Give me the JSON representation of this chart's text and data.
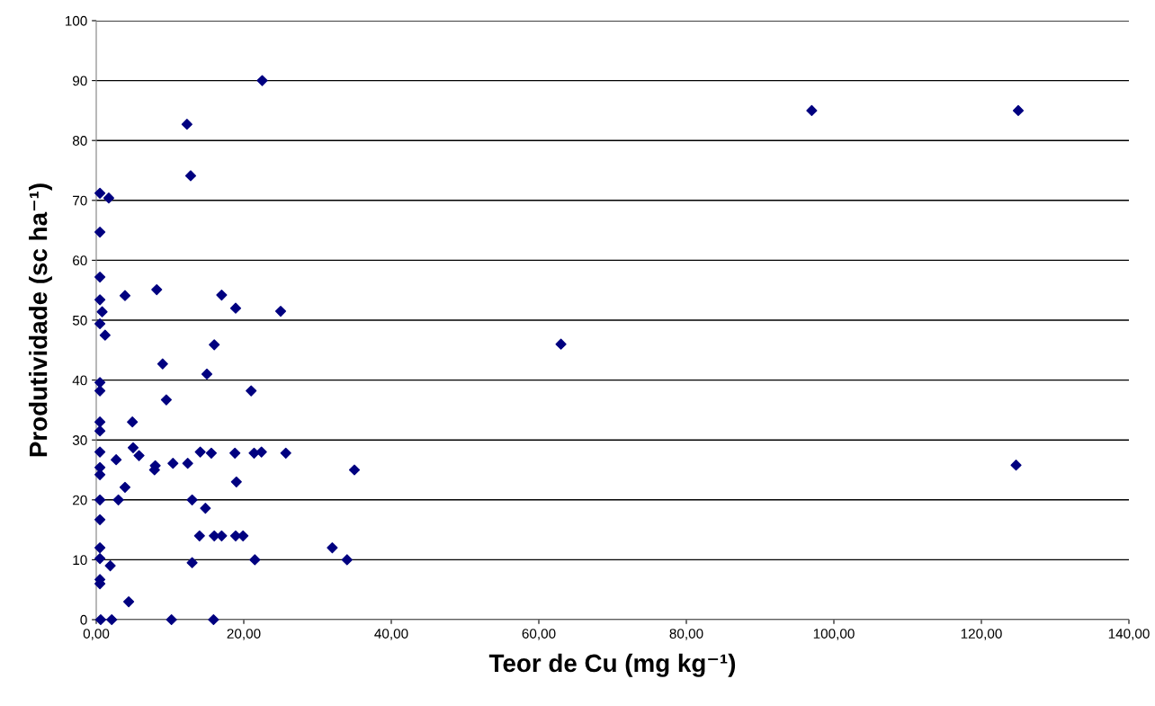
{
  "chart_data": {
    "type": "scatter",
    "xlabel": "Teor de Cu (mg kg⁻¹)",
    "ylabel": "Produtividade (sc ha⁻¹)",
    "xlim": [
      0,
      140
    ],
    "ylim": [
      0,
      100
    ],
    "xticks": [
      {
        "value": 0,
        "label": "0,00"
      },
      {
        "value": 20,
        "label": "20,00"
      },
      {
        "value": 40,
        "label": "40,00"
      },
      {
        "value": 60,
        "label": "60,00"
      },
      {
        "value": 80,
        "label": "80,00"
      },
      {
        "value": 100,
        "label": "100,00"
      },
      {
        "value": 120,
        "label": "120,00"
      },
      {
        "value": 140,
        "label": "140,00"
      }
    ],
    "yticks": [
      0,
      10,
      20,
      30,
      40,
      50,
      60,
      70,
      80,
      90,
      100
    ],
    "grid": "y",
    "marker": "diamond",
    "legend": false,
    "series": [
      {
        "color": "#000080",
        "x": [
          0.5,
          1.7,
          0.5,
          0.5,
          0.5,
          0.8,
          0.5,
          1.2,
          0.5,
          0.5,
          0.5,
          0.5,
          0.5,
          0.5,
          0.5,
          0.5,
          0.5,
          0.5,
          0.5,
          0.5,
          0.5,
          0.6,
          2.1,
          1.9,
          2.7,
          3,
          3.9,
          3.9,
          4.4,
          4.9,
          5,
          5.8,
          7.9,
          8,
          8.2,
          9,
          9.5,
          10.2,
          10.4,
          12.3,
          12.8,
          12.4,
          13,
          13,
          14,
          14.1,
          14.8,
          15,
          15.6,
          16,
          16,
          15.9,
          17,
          17,
          18.8,
          18.9,
          19,
          18.9,
          19.9,
          21,
          21.4,
          21.5,
          22.4,
          22.5,
          25,
          25.7,
          32,
          34,
          35,
          63,
          97,
          125,
          124.7
        ],
        "values": [
          71.2,
          70.4,
          64.7,
          57.2,
          53.4,
          51.4,
          49.4,
          47.5,
          39.6,
          38.2,
          33,
          31.5,
          28,
          25.4,
          24.2,
          20,
          16.7,
          12,
          10.2,
          6.7,
          6,
          0,
          0,
          9,
          26.7,
          20,
          54.1,
          22.1,
          3,
          33,
          28.7,
          27.4,
          25,
          25.7,
          55.1,
          42.7,
          36.7,
          0,
          26.1,
          82.7,
          74.1,
          26.1,
          20,
          9.5,
          14,
          28,
          18.6,
          41,
          27.8,
          45.9,
          14,
          0,
          54.2,
          14,
          27.8,
          52,
          23,
          14,
          14,
          38.2,
          27.8,
          10,
          28,
          90,
          51.5,
          27.8,
          12,
          10,
          25,
          46,
          85,
          85,
          25.8
        ]
      }
    ]
  }
}
